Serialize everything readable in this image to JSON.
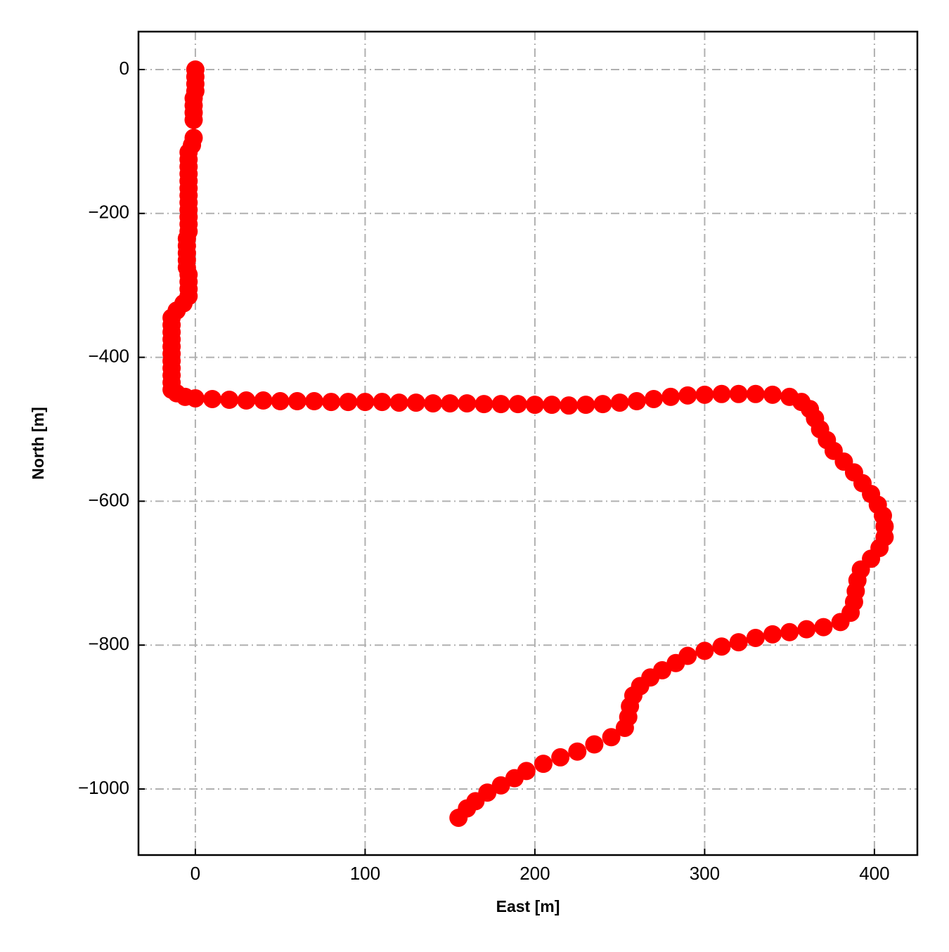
{
  "chart_data": {
    "type": "scatter",
    "xlabel": "East [m]",
    "ylabel": "North [m]",
    "color": "#ff0000",
    "grid": true,
    "xlim": [
      -33.5,
      425.3
    ],
    "ylim": [
      -1091.8,
      52.7
    ],
    "xticks": [
      0,
      100,
      200,
      300,
      400
    ],
    "yticks": [
      0,
      {
        "value": -200,
        "label": "−200"
      },
      {
        "value": -400,
        "label": "−400"
      },
      {
        "value": -600,
        "label": "−600"
      },
      {
        "value": -800,
        "label": "−800"
      },
      {
        "value": -1000,
        "label": "−1000"
      }
    ],
    "x": [
      0,
      0,
      0,
      0,
      -1,
      -1,
      -1,
      -1,
      -1,
      -2,
      -4,
      -4,
      -4,
      -4,
      -4,
      -4,
      -4,
      -4,
      -4,
      -4,
      -4,
      -4,
      -5,
      -5,
      -5,
      -5,
      -5,
      -4,
      -4,
      -4,
      -4,
      -7,
      -11,
      -14,
      -14,
      -14,
      -14,
      -14,
      -14,
      -14,
      -14,
      -14,
      -14,
      -14,
      -11,
      -6,
      0,
      10,
      20,
      30,
      40,
      50,
      60,
      70,
      80,
      90,
      100,
      110,
      120,
      130,
      140,
      150,
      160,
      170,
      180,
      190,
      200,
      210,
      220,
      230,
      240,
      250,
      260,
      270,
      280,
      290,
      300,
      310,
      320,
      330,
      340,
      350,
      357,
      362,
      365,
      368,
      372,
      376,
      382,
      388,
      393,
      398,
      402,
      405,
      406,
      406,
      403,
      398,
      392,
      390,
      389,
      388,
      386,
      380,
      370,
      360,
      350,
      340,
      330,
      320,
      310,
      300,
      290,
      283,
      275,
      268,
      262,
      258,
      256,
      255,
      253,
      245,
      235,
      225,
      215,
      205,
      195,
      188,
      180,
      172,
      165,
      160,
      155
    ],
    "y": [
      0,
      -10,
      -20,
      -30,
      -40,
      -50,
      -60,
      -70,
      -95,
      -105,
      -115,
      -125,
      -135,
      -145,
      -155,
      -165,
      -175,
      -185,
      -195,
      -205,
      -215,
      -225,
      -235,
      -245,
      -255,
      -265,
      -275,
      -285,
      -295,
      -305,
      -315,
      -325,
      -335,
      -345,
      -355,
      -365,
      -375,
      -385,
      -395,
      -405,
      -415,
      -425,
      -435,
      -445,
      -450,
      -455,
      -457,
      -458,
      -459,
      -460,
      -460,
      -461,
      -461,
      -461,
      -462,
      -462,
      -462,
      -462,
      -463,
      -463,
      -464,
      -464,
      -464,
      -465,
      -465,
      -465,
      -466,
      -466,
      -467,
      -466,
      -465,
      -463,
      -461,
      -458,
      -455,
      -453,
      -452,
      -451,
      -451,
      -451,
      -452,
      -455,
      -462,
      -472,
      -485,
      -500,
      -515,
      -530,
      -545,
      -560,
      -575,
      -590,
      -605,
      -620,
      -635,
      -650,
      -665,
      -680,
      -695,
      -710,
      -725,
      -740,
      -755,
      -768,
      -775,
      -778,
      -782,
      -785,
      -790,
      -796,
      -802,
      -808,
      -815,
      -825,
      -835,
      -845,
      -857,
      -870,
      -885,
      -900,
      -915,
      -928,
      -938,
      -948,
      -956,
      -965,
      -975,
      -985,
      -995,
      -1005,
      -1017,
      -1027,
      -1040
    ]
  }
}
